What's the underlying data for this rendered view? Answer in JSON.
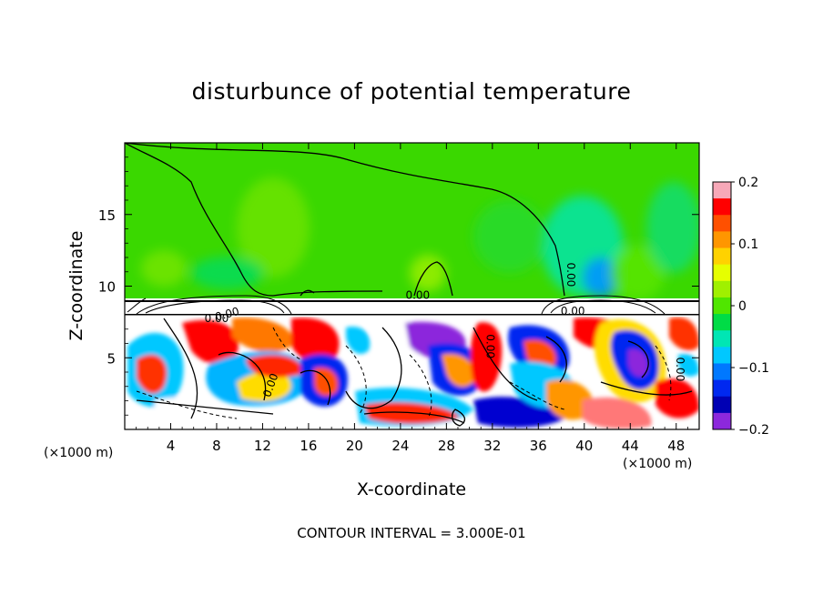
{
  "chart_data": {
    "type": "heatmap",
    "title": "disturbunce of potential temperature",
    "xlabel": "X-coordinate",
    "ylabel": "Z-coordinate",
    "x_unit_label": "(×1000 m)",
    "x_unit_label_right": "(×1000 m)",
    "footnote": "CONTOUR INTERVAL = 3.000E-01",
    "xlim": [
      0,
      50
    ],
    "ylim": [
      0,
      20
    ],
    "x_ticks": [
      4,
      8,
      12,
      16,
      20,
      24,
      28,
      32,
      36,
      40,
      44,
      48
    ],
    "x_tick_labels": [
      "4",
      "8",
      "12",
      "16",
      "20",
      "24",
      "28",
      "32",
      "36",
      "40",
      "44",
      "48"
    ],
    "y_ticks": [
      5,
      10,
      15
    ],
    "y_tick_labels": [
      "5",
      "10",
      "15"
    ],
    "colorbar": {
      "min": -0.2,
      "max": 0.2,
      "ticks": [
        0.2,
        0.1,
        0,
        -0.1,
        -0.2
      ],
      "tick_labels": [
        "0.2",
        "0.1",
        "0",
        "−0.1",
        "−0.2"
      ],
      "colors": [
        "#f7a8b8",
        "#ff0000",
        "#ff5000",
        "#ff9600",
        "#ffd200",
        "#e6ff00",
        "#a0f000",
        "#50e600",
        "#00dc46",
        "#00e6b4",
        "#00c8ff",
        "#0078ff",
        "#0028f0",
        "#0000b4",
        "#8c28dc"
      ]
    },
    "contour_labels": [
      "0.00",
      "0.00",
      "0.00",
      "0.00",
      "0.00",
      "0.00",
      "0.00",
      "0.00"
    ]
  },
  "colors": {
    "upper_field": "#3cdc00",
    "contour": "#000000"
  }
}
